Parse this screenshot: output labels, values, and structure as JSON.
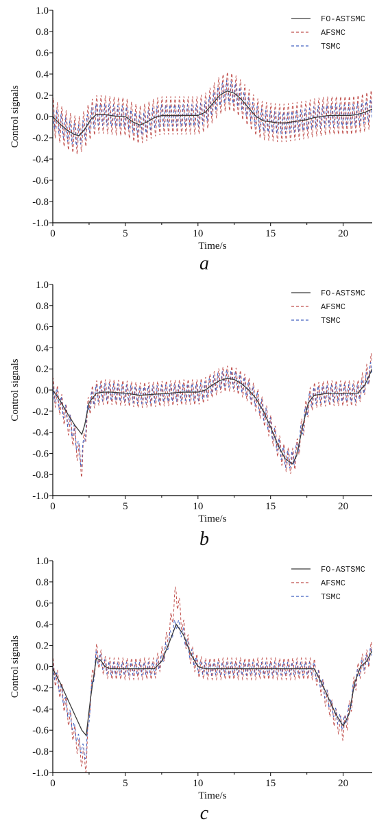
{
  "colors": {
    "fo_astsmc": "#3a3a3a",
    "afsmc": "#c0504d",
    "tsmc": "#4060c0",
    "axis": "#000000"
  },
  "chart_data": [
    {
      "type": "line",
      "panel_label": "a",
      "xlabel": "Time/s",
      "ylabel": "Control signals",
      "xlim": [
        0,
        22
      ],
      "ylim": [
        -1.0,
        1.0
      ],
      "x_ticks": [
        "0",
        "5",
        "10",
        "15",
        "20"
      ],
      "x_tick_values": [
        0,
        5,
        10,
        15,
        20
      ],
      "y_ticks": [
        "-1.0",
        "-0.8",
        "-0.6",
        "-0.4",
        "-0.2",
        "0.0",
        "0.2",
        "0.4",
        "0.6",
        "0.8",
        "1.0"
      ],
      "y_tick_values": [
        -1.0,
        -0.8,
        -0.6,
        -0.4,
        -0.2,
        0.0,
        0.2,
        0.4,
        0.6,
        0.8,
        1.0
      ],
      "legend_position": "top-right",
      "series": [
        {
          "name": "FO-ASTSMC",
          "style": "solid",
          "x": [
            0,
            0.5,
            1.0,
            1.5,
            1.8,
            2.2,
            2.6,
            3.0,
            3.5,
            4.0,
            4.5,
            5.0,
            5.5,
            6.0,
            6.5,
            7.0,
            7.5,
            8.0,
            8.5,
            9.0,
            9.5,
            10.0,
            10.5,
            11.0,
            11.5,
            12.0,
            12.5,
            13.0,
            13.5,
            14.0,
            14.5,
            15.0,
            15.5,
            16.0,
            16.5,
            17.0,
            17.5,
            18.0,
            18.5,
            19.0,
            19.5,
            20.0,
            20.5,
            21.0,
            21.5,
            22.0
          ],
          "y": [
            0.0,
            -0.07,
            -0.13,
            -0.17,
            -0.18,
            -0.12,
            -0.03,
            0.02,
            0.02,
            0.01,
            0.0,
            0.0,
            -0.05,
            -0.08,
            -0.05,
            -0.01,
            0.01,
            0.01,
            0.01,
            0.01,
            0.01,
            0.01,
            0.04,
            0.12,
            0.2,
            0.24,
            0.22,
            0.16,
            0.08,
            0.0,
            -0.04,
            -0.05,
            -0.06,
            -0.06,
            -0.05,
            -0.04,
            -0.03,
            -0.01,
            0.0,
            0.01,
            0.01,
            0.01,
            0.01,
            0.02,
            0.04,
            0.07
          ]
        },
        {
          "name": "AFSMC",
          "style": "dashed",
          "x": [
            0,
            0.5,
            1.0,
            1.5,
            1.8,
            2.2,
            2.6,
            3.0,
            3.5,
            4.0,
            4.5,
            5.0,
            5.5,
            6.0,
            6.5,
            7.0,
            7.5,
            8.0,
            8.5,
            9.0,
            9.5,
            10.0,
            10.5,
            11.0,
            11.5,
            12.0,
            12.5,
            13.0,
            13.5,
            14.0,
            14.5,
            15.0,
            15.5,
            16.0,
            16.5,
            17.0,
            17.5,
            18.0,
            18.5,
            19.0,
            19.5,
            20.0,
            20.5,
            21.0,
            21.5,
            22.0
          ],
          "y": [
            0.0,
            -0.07,
            -0.13,
            -0.17,
            -0.18,
            -0.12,
            -0.03,
            0.02,
            0.02,
            0.01,
            0.0,
            0.0,
            -0.05,
            -0.08,
            -0.05,
            -0.01,
            0.01,
            0.01,
            0.01,
            0.01,
            0.01,
            0.01,
            0.04,
            0.12,
            0.2,
            0.24,
            0.22,
            0.16,
            0.08,
            0.0,
            -0.04,
            -0.05,
            -0.06,
            -0.06,
            -0.05,
            -0.04,
            -0.03,
            -0.01,
            0.0,
            0.01,
            0.01,
            0.01,
            0.01,
            0.02,
            0.04,
            0.07
          ],
          "oscillation_amplitude": 0.18,
          "oscillation_period": 0.3
        },
        {
          "name": "TSMC",
          "style": "dashed",
          "x": [
            0,
            0.5,
            1.0,
            1.5,
            1.8,
            2.2,
            2.6,
            3.0,
            3.5,
            4.0,
            4.5,
            5.0,
            5.5,
            6.0,
            6.5,
            7.0,
            7.5,
            8.0,
            8.5,
            9.0,
            9.5,
            10.0,
            10.5,
            11.0,
            11.5,
            12.0,
            12.5,
            13.0,
            13.5,
            14.0,
            14.5,
            15.0,
            15.5,
            16.0,
            16.5,
            17.0,
            17.5,
            18.0,
            18.5,
            19.0,
            19.5,
            20.0,
            20.5,
            21.0,
            21.5,
            22.0
          ],
          "y": [
            0.0,
            -0.07,
            -0.13,
            -0.17,
            -0.18,
            -0.12,
            -0.03,
            0.02,
            0.02,
            0.01,
            0.0,
            0.0,
            -0.05,
            -0.08,
            -0.05,
            -0.01,
            0.01,
            0.01,
            0.01,
            0.01,
            0.01,
            0.01,
            0.04,
            0.12,
            0.2,
            0.24,
            0.22,
            0.16,
            0.08,
            0.0,
            -0.04,
            -0.05,
            -0.06,
            -0.06,
            -0.05,
            -0.04,
            -0.03,
            -0.01,
            0.0,
            0.01,
            0.01,
            0.01,
            0.01,
            0.02,
            0.04,
            0.07
          ],
          "oscillation_amplitude": 0.1,
          "oscillation_period": 0.3
        }
      ]
    },
    {
      "type": "line",
      "panel_label": "b",
      "xlabel": "Time/s",
      "ylabel": "Control signals",
      "xlim": [
        0,
        22
      ],
      "ylim": [
        -1.0,
        1.0
      ],
      "x_ticks": [
        "0",
        "5",
        "10",
        "15",
        "20"
      ],
      "x_tick_values": [
        0,
        5,
        10,
        15,
        20
      ],
      "y_ticks": [
        "-1.0",
        "-0.8",
        "-0.6",
        "-0.4",
        "-0.2",
        "0.0",
        "0.2",
        "0.4",
        "0.6",
        "0.8",
        "1.0"
      ],
      "y_tick_values": [
        -1.0,
        -0.8,
        -0.6,
        -0.4,
        -0.2,
        0.0,
        0.2,
        0.4,
        0.6,
        0.8,
        1.0
      ],
      "legend_position": "top-right",
      "series": [
        {
          "name": "FO-ASTSMC",
          "style": "solid",
          "x": [
            0,
            0.5,
            1.0,
            1.5,
            2.0,
            2.2,
            2.5,
            3.0,
            3.5,
            4.0,
            5.0,
            6.0,
            7.0,
            8.0,
            9.0,
            10.0,
            10.5,
            11.0,
            11.5,
            12.0,
            12.5,
            13.0,
            13.5,
            14.0,
            14.5,
            15.0,
            15.5,
            16.0,
            16.5,
            16.8,
            17.2,
            17.6,
            18.0,
            19.0,
            20.0,
            21.0,
            21.5,
            22.0
          ],
          "y": [
            0.0,
            -0.1,
            -0.22,
            -0.33,
            -0.42,
            -0.33,
            -0.12,
            -0.03,
            -0.02,
            -0.02,
            -0.03,
            -0.05,
            -0.04,
            -0.03,
            -0.02,
            -0.02,
            0.0,
            0.05,
            0.09,
            0.11,
            0.1,
            0.06,
            0.0,
            -0.08,
            -0.2,
            -0.35,
            -0.52,
            -0.65,
            -0.7,
            -0.62,
            -0.35,
            -0.12,
            -0.05,
            -0.03,
            -0.03,
            -0.03,
            0.05,
            0.2
          ]
        },
        {
          "name": "AFSMC",
          "style": "dashed",
          "x": [
            0,
            0.5,
            1.0,
            1.5,
            2.0,
            2.2,
            2.5,
            3.0,
            3.5,
            4.0,
            5.0,
            6.0,
            7.0,
            8.0,
            9.0,
            10.0,
            10.5,
            11.0,
            11.5,
            12.0,
            12.5,
            13.0,
            13.5,
            14.0,
            14.5,
            15.0,
            15.5,
            16.0,
            16.5,
            16.8,
            17.2,
            17.6,
            18.0,
            19.0,
            20.0,
            21.0,
            21.5,
            22.0
          ],
          "y": [
            0.0,
            -0.12,
            -0.28,
            -0.45,
            -0.72,
            -0.45,
            -0.12,
            -0.03,
            -0.02,
            -0.02,
            -0.03,
            -0.05,
            -0.04,
            -0.03,
            -0.02,
            -0.02,
            0.0,
            0.05,
            0.09,
            0.11,
            0.1,
            0.06,
            0.0,
            -0.08,
            -0.2,
            -0.35,
            -0.52,
            -0.65,
            -0.68,
            -0.6,
            -0.35,
            -0.12,
            -0.05,
            -0.03,
            -0.03,
            -0.03,
            0.08,
            0.25
          ],
          "oscillation_amplitude": 0.12,
          "oscillation_period": 0.3
        },
        {
          "name": "TSMC",
          "style": "dashed",
          "x": [
            0,
            0.5,
            1.0,
            1.5,
            2.0,
            2.2,
            2.5,
            3.0,
            3.5,
            4.0,
            5.0,
            6.0,
            7.0,
            8.0,
            9.0,
            10.0,
            10.5,
            11.0,
            11.5,
            12.0,
            12.5,
            13.0,
            13.5,
            14.0,
            14.5,
            15.0,
            15.5,
            16.0,
            16.5,
            16.8,
            17.2,
            17.6,
            18.0,
            19.0,
            20.0,
            21.0,
            21.5,
            22.0
          ],
          "y": [
            0.0,
            -0.12,
            -0.26,
            -0.42,
            -0.68,
            -0.42,
            -0.12,
            -0.03,
            -0.02,
            -0.02,
            -0.03,
            -0.05,
            -0.04,
            -0.03,
            -0.02,
            -0.02,
            0.0,
            0.05,
            0.09,
            0.11,
            0.1,
            0.06,
            0.0,
            -0.08,
            -0.2,
            -0.35,
            -0.52,
            -0.65,
            -0.66,
            -0.58,
            -0.35,
            -0.12,
            -0.05,
            -0.03,
            -0.03,
            -0.03,
            0.06,
            0.22
          ],
          "oscillation_amplitude": 0.08,
          "oscillation_period": 0.3
        }
      ]
    },
    {
      "type": "line",
      "panel_label": "c",
      "xlabel": "Time/s",
      "ylabel": "Control signals",
      "xlim": [
        0,
        22
      ],
      "ylim": [
        -1.0,
        1.0
      ],
      "x_ticks": [
        "0",
        "5",
        "10",
        "15",
        "20"
      ],
      "x_tick_values": [
        0,
        5,
        10,
        15,
        20
      ],
      "y_ticks": [
        "-1.0",
        "-0.8",
        "-0.6",
        "-0.4",
        "-0.2",
        "0.0",
        "0.2",
        "0.4",
        "0.6",
        "0.8",
        "1.0"
      ],
      "y_tick_values": [
        -1.0,
        -0.8,
        -0.6,
        -0.4,
        -0.2,
        0.0,
        0.2,
        0.4,
        0.6,
        0.8,
        1.0
      ],
      "legend_position": "top-right",
      "series": [
        {
          "name": "FO-ASTSMC",
          "style": "solid",
          "x": [
            0,
            0.5,
            1.0,
            1.5,
            2.0,
            2.3,
            2.6,
            3.0,
            3.3,
            3.6,
            4.0,
            5.0,
            6.0,
            7.0,
            7.5,
            8.0,
            8.5,
            9.0,
            9.5,
            10.0,
            10.5,
            11.0,
            12.0,
            13.0,
            14.0,
            15.0,
            16.0,
            17.0,
            18.0,
            18.5,
            19.0,
            19.5,
            20.0,
            20.4,
            20.8,
            21.2,
            21.6,
            22.0
          ],
          "y": [
            -0.02,
            -0.15,
            -0.3,
            -0.45,
            -0.6,
            -0.65,
            -0.3,
            0.08,
            0.06,
            0.0,
            -0.02,
            -0.02,
            -0.02,
            -0.02,
            0.05,
            0.22,
            0.4,
            0.3,
            0.12,
            0.0,
            -0.02,
            -0.02,
            -0.02,
            -0.02,
            -0.02,
            -0.02,
            -0.02,
            -0.02,
            -0.02,
            -0.15,
            -0.3,
            -0.45,
            -0.56,
            -0.45,
            -0.15,
            0.0,
            0.05,
            0.15
          ]
        },
        {
          "name": "AFSMC",
          "style": "dashed",
          "x": [
            0,
            0.5,
            1.0,
            1.5,
            2.0,
            2.3,
            2.6,
            3.0,
            3.3,
            3.6,
            4.0,
            5.0,
            6.0,
            7.0,
            7.5,
            8.0,
            8.5,
            9.0,
            9.5,
            10.0,
            10.5,
            11.0,
            12.0,
            13.0,
            14.0,
            15.0,
            16.0,
            17.0,
            18.0,
            18.5,
            19.0,
            19.5,
            20.0,
            20.4,
            20.8,
            21.2,
            21.6,
            22.0
          ],
          "y": [
            -0.02,
            -0.2,
            -0.42,
            -0.65,
            -0.85,
            -0.9,
            -0.25,
            0.12,
            0.06,
            0.0,
            -0.02,
            -0.02,
            -0.02,
            -0.02,
            0.08,
            0.3,
            0.7,
            0.35,
            0.12,
            0.0,
            -0.02,
            -0.02,
            -0.02,
            -0.02,
            -0.02,
            -0.02,
            -0.02,
            -0.02,
            -0.02,
            -0.18,
            -0.35,
            -0.5,
            -0.6,
            -0.45,
            -0.15,
            0.0,
            0.05,
            0.15
          ],
          "oscillation_amplitude": 0.1,
          "oscillation_period": 0.3
        },
        {
          "name": "TSMC",
          "style": "dashed",
          "x": [
            0,
            0.5,
            1.0,
            1.5,
            2.0,
            2.3,
            2.6,
            3.0,
            3.3,
            3.6,
            4.0,
            5.0,
            6.0,
            7.0,
            7.5,
            8.0,
            8.5,
            9.0,
            9.5,
            10.0,
            10.5,
            11.0,
            12.0,
            13.0,
            14.0,
            15.0,
            16.0,
            17.0,
            18.0,
            18.5,
            19.0,
            19.5,
            20.0,
            20.4,
            20.8,
            21.2,
            21.6,
            22.0
          ],
          "y": [
            -0.02,
            -0.2,
            -0.4,
            -0.6,
            -0.78,
            -0.82,
            -0.3,
            0.1,
            0.06,
            0.0,
            -0.02,
            -0.02,
            -0.02,
            -0.02,
            0.06,
            0.25,
            0.42,
            0.3,
            0.12,
            0.0,
            -0.02,
            -0.02,
            -0.02,
            -0.02,
            -0.02,
            -0.02,
            -0.02,
            -0.02,
            -0.02,
            -0.16,
            -0.32,
            -0.46,
            -0.55,
            -0.42,
            -0.15,
            0.0,
            0.05,
            0.15
          ],
          "oscillation_amplitude": 0.06,
          "oscillation_period": 0.3
        }
      ]
    }
  ]
}
